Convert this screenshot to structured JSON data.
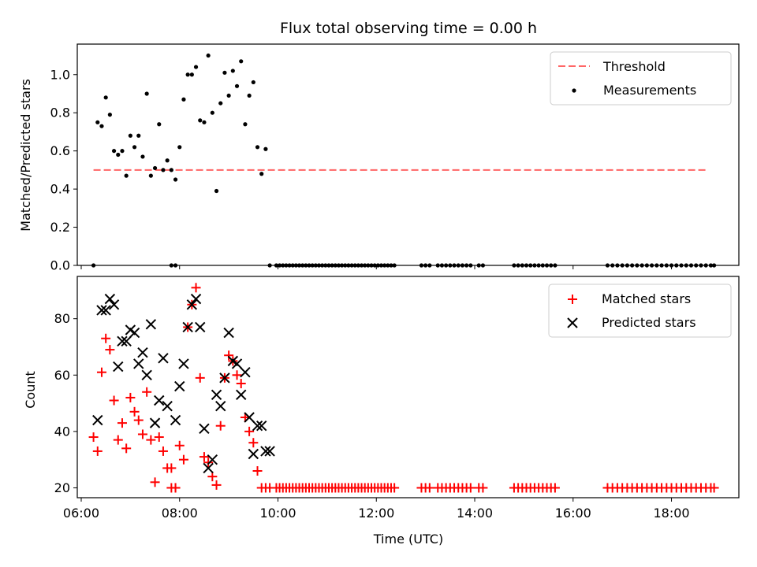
{
  "chart_data": [
    {
      "type": "scatter",
      "title": "Flux total observing time = 0.00 h",
      "xlabel": "",
      "ylabel": "Matched/Predicted stars",
      "xlim_hours": [
        5.92,
        19.37
      ],
      "ylim": [
        0,
        1.16
      ],
      "x_ticks": [
        "06:00",
        "08:00",
        "10:00",
        "12:00",
        "14:00",
        "16:00",
        "18:00"
      ],
      "y_ticks": [
        "0.0",
        "0.2",
        "0.4",
        "0.6",
        "0.8",
        "1.0"
      ],
      "legend_position": "top-right",
      "colors": {
        "threshold": "#ff6666",
        "measurements": "#000000"
      },
      "series": [
        {
          "name": "Threshold",
          "kind": "dashed-line",
          "x": [
            "06:15",
            "18:45"
          ],
          "values": [
            0.5,
            0.5
          ]
        },
        {
          "name": "Measurements",
          "kind": "points",
          "x": [
            "06:15",
            "06:20",
            "06:25",
            "06:30",
            "06:35",
            "06:40",
            "06:45",
            "06:50",
            "06:55",
            "07:00",
            "07:05",
            "07:10",
            "07:15",
            "07:20",
            "07:25",
            "07:30",
            "07:35",
            "07:40",
            "07:45",
            "07:50",
            "07:55",
            "08:00",
            "08:05",
            "08:10",
            "08:15",
            "08:20",
            "08:25",
            "08:30",
            "08:35",
            "08:40",
            "08:45",
            "08:50",
            "08:55",
            "09:00",
            "09:05",
            "09:10",
            "09:15",
            "09:20",
            "09:25",
            "09:30",
            "09:35",
            "09:40",
            "09:45",
            "09:50",
            "07:50",
            "07:55",
            "09:58",
            "10:02",
            "10:06",
            "10:10",
            "10:14",
            "10:18",
            "10:22",
            "10:26",
            "10:30",
            "10:34",
            "10:38",
            "10:42",
            "10:46",
            "10:50",
            "10:54",
            "10:58",
            "11:02",
            "11:06",
            "11:10",
            "11:14",
            "11:18",
            "11:22",
            "11:26",
            "11:30",
            "11:34",
            "11:38",
            "11:42",
            "11:46",
            "11:50",
            "11:54",
            "11:58",
            "12:02",
            "12:06",
            "12:10",
            "12:14",
            "12:18",
            "12:22",
            "12:55",
            "13:00",
            "13:05",
            "13:15",
            "13:20",
            "13:25",
            "13:30",
            "13:35",
            "13:40",
            "13:45",
            "13:50",
            "13:55",
            "14:05",
            "14:10",
            "14:48",
            "14:53",
            "14:58",
            "15:03",
            "15:08",
            "15:13",
            "15:18",
            "15:23",
            "15:28",
            "15:33",
            "15:38",
            "16:42",
            "16:48",
            "16:54",
            "17:00",
            "17:06",
            "17:12",
            "17:18",
            "17:24",
            "17:30",
            "17:36",
            "17:42",
            "17:48",
            "17:54",
            "18:00",
            "18:06",
            "18:12",
            "18:18",
            "18:24",
            "18:30",
            "18:36",
            "18:42",
            "18:48",
            "18:52"
          ],
          "values": [
            0.0,
            0.75,
            0.73,
            0.88,
            0.79,
            0.6,
            0.58,
            0.6,
            0.47,
            0.68,
            0.62,
            0.68,
            0.57,
            0.9,
            0.47,
            0.51,
            0.74,
            0.5,
            0.55,
            0.5,
            0.45,
            0.62,
            0.87,
            1.0,
            1.0,
            1.04,
            0.76,
            0.75,
            1.1,
            0.8,
            0.39,
            0.85,
            1.01,
            0.89,
            1.02,
            0.94,
            1.07,
            0.74,
            0.89,
            0.96,
            0.62,
            0.48,
            0.61,
            0.0,
            0.0,
            0.0,
            0.0,
            0.0,
            0.0,
            0.0,
            0.0,
            0.0,
            0.0,
            0.0,
            0.0,
            0.0,
            0.0,
            0.0,
            0.0,
            0.0,
            0.0,
            0.0,
            0.0,
            0.0,
            0.0,
            0.0,
            0.0,
            0.0,
            0.0,
            0.0,
            0.0,
            0.0,
            0.0,
            0.0,
            0.0,
            0.0,
            0.0,
            0.0,
            0.0,
            0.0,
            0.0,
            0.0,
            0.0,
            0.0,
            0.0,
            0.0,
            0.0,
            0.0,
            0.0,
            0.0,
            0.0,
            0.0,
            0.0,
            0.0,
            0.0,
            0.0,
            0.0,
            0.0,
            0.0,
            0.0,
            0.0,
            0.0,
            0.0,
            0.0,
            0.0,
            0.0,
            0.0,
            0.0,
            0.0,
            0.0,
            0.0,
            0.0,
            0.0,
            0.0,
            0.0,
            0.0,
            0.0,
            0.0,
            0.0,
            0.0,
            0.0,
            0.0,
            0.0,
            0.0,
            0.0,
            0.0,
            0.0,
            0.0,
            0.0,
            0.0,
            0.0
          ]
        }
      ]
    },
    {
      "type": "scatter",
      "title": "",
      "xlabel": "Time (UTC)",
      "ylabel": "Count",
      "xlim_hours": [
        5.92,
        19.37
      ],
      "ylim": [
        16.5,
        95
      ],
      "x_ticks": [
        "06:00",
        "08:00",
        "10:00",
        "12:00",
        "14:00",
        "16:00",
        "18:00"
      ],
      "y_ticks": [
        "20",
        "40",
        "60",
        "80"
      ],
      "legend_position": "top-right",
      "colors": {
        "matched": "#ff0000",
        "predicted": "#000000"
      },
      "series": [
        {
          "name": "Matched stars",
          "marker": "plus",
          "x": [
            "06:15",
            "06:20",
            "06:25",
            "06:30",
            "06:35",
            "06:40",
            "06:45",
            "06:50",
            "06:55",
            "07:00",
            "07:05",
            "07:10",
            "07:15",
            "07:20",
            "07:25",
            "07:30",
            "07:35",
            "07:40",
            "07:45",
            "07:50",
            "07:55",
            "08:00",
            "08:05",
            "08:10",
            "08:15",
            "08:20",
            "08:25",
            "08:30",
            "08:35",
            "08:40",
            "08:45",
            "08:50",
            "08:55",
            "09:00",
            "09:05",
            "09:10",
            "09:15",
            "09:20",
            "09:25",
            "09:30",
            "09:35",
            "09:40",
            "09:45",
            "09:50",
            "07:50",
            "07:55",
            "09:58",
            "10:02",
            "10:06",
            "10:10",
            "10:14",
            "10:18",
            "10:22",
            "10:26",
            "10:30",
            "10:34",
            "10:38",
            "10:42",
            "10:46",
            "10:50",
            "10:54",
            "10:58",
            "11:02",
            "11:06",
            "11:10",
            "11:14",
            "11:18",
            "11:22",
            "11:26",
            "11:30",
            "11:34",
            "11:38",
            "11:42",
            "11:46",
            "11:50",
            "11:54",
            "11:58",
            "12:02",
            "12:06",
            "12:10",
            "12:14",
            "12:18",
            "12:22",
            "12:55",
            "13:00",
            "13:05",
            "13:15",
            "13:20",
            "13:25",
            "13:30",
            "13:35",
            "13:40",
            "13:45",
            "13:50",
            "13:55",
            "14:05",
            "14:10",
            "14:48",
            "14:53",
            "14:58",
            "15:03",
            "15:08",
            "15:13",
            "15:18",
            "15:23",
            "15:28",
            "15:33",
            "15:38",
            "16:42",
            "16:48",
            "16:54",
            "17:00",
            "17:06",
            "17:12",
            "17:18",
            "17:24",
            "17:30",
            "17:36",
            "17:42",
            "17:48",
            "17:54",
            "18:00",
            "18:06",
            "18:12",
            "18:18",
            "18:24",
            "18:30",
            "18:36",
            "18:42",
            "18:48",
            "18:52"
          ],
          "values": [
            38,
            33,
            61,
            73,
            69,
            51,
            37,
            43,
            34,
            52,
            47,
            44,
            39,
            54,
            37,
            22,
            38,
            33,
            27,
            27,
            20,
            35,
            30,
            77,
            85,
            91,
            59,
            31,
            29,
            24,
            21,
            42,
            59,
            67,
            65,
            60,
            57,
            45,
            40,
            36,
            26,
            20,
            20,
            20,
            20,
            20,
            20,
            20,
            20,
            20,
            20,
            20,
            20,
            20,
            20,
            20,
            20,
            20,
            20,
            20,
            20,
            20,
            20,
            20,
            20,
            20,
            20,
            20,
            20,
            20,
            20,
            20,
            20,
            20,
            20,
            20,
            20,
            20,
            20,
            20,
            20,
            20,
            20,
            20,
            20,
            20,
            20,
            20,
            20,
            20,
            20,
            20,
            20,
            20,
            20,
            20,
            20,
            20,
            20,
            20,
            20,
            20,
            20,
            20,
            20,
            20,
            20,
            20,
            20,
            20,
            20,
            20,
            20,
            20,
            20,
            20,
            20,
            20,
            20,
            20,
            20,
            20,
            20,
            20,
            20,
            20,
            20,
            20,
            20,
            20,
            20
          ]
        },
        {
          "name": "Predicted stars",
          "marker": "cross",
          "x": [
            "06:20",
            "06:25",
            "06:30",
            "06:35",
            "06:40",
            "06:45",
            "06:50",
            "06:55",
            "07:00",
            "07:05",
            "07:10",
            "07:15",
            "07:20",
            "07:25",
            "07:30",
            "07:35",
            "07:40",
            "07:45",
            "07:55",
            "08:00",
            "08:05",
            "08:10",
            "08:15",
            "08:20",
            "08:25",
            "08:30",
            "08:35",
            "08:40",
            "08:45",
            "08:50",
            "08:55",
            "09:00",
            "09:05",
            "09:10",
            "09:15",
            "09:20",
            "09:25",
            "09:30",
            "09:35",
            "09:40",
            "09:45",
            "09:50"
          ],
          "values": [
            44,
            83,
            83,
            87,
            85,
            63,
            72,
            72,
            76,
            75,
            64,
            68,
            60,
            78,
            43,
            51,
            66,
            49,
            44,
            56,
            64,
            77,
            85,
            87,
            77,
            41,
            27,
            30,
            53,
            49,
            59,
            75,
            65,
            64,
            53,
            61,
            45,
            32,
            42,
            42,
            33,
            33
          ]
        }
      ]
    }
  ]
}
